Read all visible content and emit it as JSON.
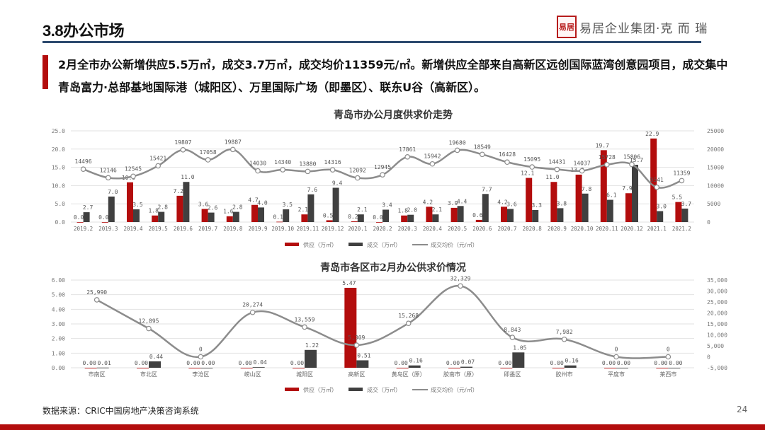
{
  "header": {
    "title": "3.8办公市场",
    "brand_seal": "易居",
    "brand_text": "易居企业集团·克 而 瑞"
  },
  "summary": "2月全市办公新增供应5.5万㎡，成交3.7万㎡，成交均价11359元/㎡。新增供应全部来自高新区远创国际蓝湾创意园项目，成交集中青岛富力·总部基地国际港（城阳区）、万里国际广场（即墨区）、联东U谷（高新区）。",
  "footer": {
    "source": "数据来源：CRIC中国房地产决策咨询系统",
    "page": "24"
  },
  "colors": {
    "supply": "#b30d0d",
    "deal": "#404040",
    "price": "#8c8c8c",
    "accent": "#b30d0d",
    "rule": "#2c4a6e"
  },
  "chart_data": [
    {
      "type": "bar",
      "title": "青岛市办公月度供求价走势",
      "categories": [
        "2019.2",
        "2019.3",
        "2019.4",
        "2019.5",
        "2019.6",
        "2019.7",
        "2019.8",
        "2019.9",
        "2019.10",
        "2019.11",
        "2019.12",
        "2020.1",
        "2020.2",
        "2020.3",
        "2020.4",
        "2020.5",
        "2020.6",
        "2020.7",
        "2020.8",
        "2020.9",
        "2020.10",
        "2020.11",
        "2020.12",
        "2021.1",
        "2021.2"
      ],
      "series": [
        {
          "name": "供应（万㎡）",
          "kind": "bar",
          "axis": "left",
          "values": [
            0.0,
            0.0,
            10.9,
            1.8,
            7.2,
            3.6,
            1.6,
            4.7,
            0.1,
            2.1,
            0.5,
            0.2,
            0.0,
            1.8,
            4.2,
            3.9,
            0.6,
            4.2,
            12.1,
            11.0,
            13.0,
            19.7,
            7.9,
            22.9,
            5.5
          ]
        },
        {
          "name": "成交（万㎡）",
          "kind": "bar",
          "axis": "left",
          "values": [
            2.7,
            7.0,
            3.5,
            2.8,
            11.0,
            2.6,
            2.8,
            4.0,
            3.5,
            7.6,
            9.4,
            2.1,
            3.4,
            2.0,
            2.1,
            4.4,
            7.7,
            3.6,
            3.3,
            3.8,
            7.8,
            6.1,
            15.7,
            3.0,
            3.7
          ]
        },
        {
          "name": "成交均价（元/㎡）",
          "kind": "line",
          "axis": "right",
          "values": [
            14496,
            12146,
            12545,
            15421,
            19807,
            17058,
            19887,
            14030,
            14340,
            13880,
            14316,
            12092,
            12945,
            17861,
            15942,
            19680,
            18549,
            16428,
            15095,
            14431,
            14037,
            15728,
            15806,
            9541,
            11359
          ]
        }
      ],
      "supply_labels": [
        "0.0",
        "0.0",
        "10.9",
        "1.8",
        "7.2",
        "3.6",
        "1.6",
        "4.7",
        "0.1",
        "2.1",
        "0.5",
        "0.2",
        "0.0",
        "1.8",
        "4.2",
        "3.9",
        "0.6",
        "4.2",
        "12.1",
        "11.0",
        "13.0",
        "19.7",
        "7.9",
        "22.9",
        "5.5"
      ],
      "deal_labels": [
        "2.7",
        "7.0",
        "3.5",
        "2.8",
        "11.0",
        "2.6",
        "2.8",
        "4.0",
        "3.5",
        "7.6",
        "9.4",
        "2.1",
        "3.4",
        "2.0",
        "2.1",
        "4.4",
        "7.7",
        "3.6",
        "3.3",
        "3.8",
        "7.8",
        "6.1",
        "15.7",
        "3.0",
        "3.7"
      ],
      "ylim_left": [
        0,
        25
      ],
      "yticks_left": [
        "0.0",
        "5.0",
        "10.0",
        "15.0",
        "20.0",
        "25.0"
      ],
      "ylim_right": [
        0,
        25000
      ],
      "yticks_right": [
        "0",
        "5000",
        "10000",
        "15000",
        "20000",
        "25000"
      ],
      "grid": true,
      "legend_position": "bottom",
      "legend": [
        "供应（万㎡）",
        "成交（万㎡）",
        "成交均价（元/㎡）"
      ]
    },
    {
      "type": "bar",
      "title": "青岛市各区市2月办公供求价情况",
      "categories": [
        "市南区",
        "市北区",
        "李沧区",
        "崂山区",
        "城阳区",
        "高新区",
        "黄岛区（原）",
        "胶南市（原）",
        "即墨区",
        "胶州市",
        "平度市",
        "莱西市"
      ],
      "series": [
        {
          "name": "供应（万㎡）",
          "kind": "bar",
          "axis": "left",
          "values": [
            0.0,
            0.0,
            0.0,
            0.0,
            0.0,
            5.47,
            0.0,
            0.0,
            0.0,
            0.0,
            0.0,
            0.0
          ]
        },
        {
          "name": "成交（万㎡）",
          "kind": "bar",
          "axis": "left",
          "values": [
            0.01,
            0.44,
            0.0,
            0.04,
            1.22,
            0.51,
            0.16,
            0.07,
            1.05,
            0.16,
            0.0,
            0.0
          ]
        },
        {
          "name": "成交均价（元/㎡）",
          "kind": "line",
          "axis": "right",
          "values": [
            25990,
            12895,
            0,
            20274,
            13559,
            5309,
            15268,
            32329,
            8843,
            7982,
            0,
            0
          ]
        }
      ],
      "supply_labels": [
        "0.00",
        "0.00",
        "0.00",
        "0.00",
        "0.00",
        "5.47",
        "0.00",
        "0.00",
        "0.00",
        "0.00",
        "0.00",
        "0.00"
      ],
      "deal_labels": [
        "0.01",
        "0.44",
        "0.00",
        "0.04",
        "1.22",
        "0.51",
        "0.16",
        "0.07",
        "1.05",
        "0.16",
        "0.00",
        "0.00"
      ],
      "price_labels": [
        "25,990",
        "12,895",
        "0",
        "20,274",
        "13,559",
        "5,309",
        "15,268",
        "32,329",
        "8,843",
        "7,982",
        "0",
        "0"
      ],
      "ylim_left": [
        0,
        6
      ],
      "yticks_left": [
        "0.00",
        "1.00",
        "2.00",
        "3.00",
        "4.00",
        "5.00",
        "6.00"
      ],
      "ylim_right": [
        -5000,
        35000
      ],
      "yticks_right": [
        "-5,000",
        "0",
        "5,000",
        "10,000",
        "15,000",
        "20,000",
        "25,000",
        "30,000",
        "35,000"
      ],
      "grid": true,
      "legend_position": "bottom",
      "legend": [
        "供应（万㎡）",
        "成交（万㎡）",
        "成交均价（元/㎡）"
      ]
    }
  ]
}
